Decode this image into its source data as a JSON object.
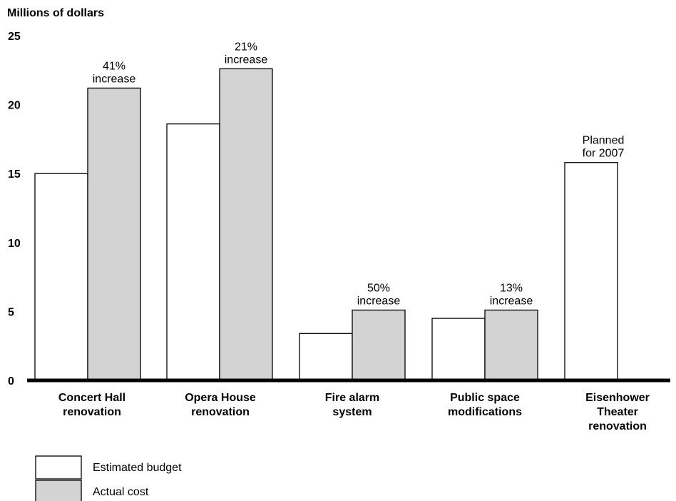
{
  "chart_data": {
    "type": "bar",
    "ylabel": "Millions of dollars",
    "ylim": [
      0,
      25
    ],
    "yticks": [
      "0",
      "5",
      "10",
      "15",
      "20",
      "25"
    ],
    "grid": false,
    "legend_position": "bottom-left",
    "categories": [
      [
        "Concert Hall",
        "renovation"
      ],
      [
        "Opera House",
        "renovation"
      ],
      [
        "Fire alarm",
        "system"
      ],
      [
        "Public space",
        "modifications"
      ],
      [
        "Eisenhower",
        "Theater",
        "renovation"
      ]
    ],
    "series": [
      {
        "name": "Estimated budget",
        "color": "#ffffff",
        "values": [
          15.0,
          18.6,
          3.4,
          4.5,
          15.8
        ]
      },
      {
        "name": "Actual cost",
        "color": "#d3d3d3",
        "values": [
          21.2,
          22.6,
          5.1,
          5.1,
          null
        ]
      }
    ],
    "annotations": [
      {
        "category_index": 0,
        "lines": [
          "41%",
          "increase"
        ]
      },
      {
        "category_index": 1,
        "lines": [
          "21%",
          "increase"
        ]
      },
      {
        "category_index": 2,
        "lines": [
          "50%",
          "increase"
        ]
      },
      {
        "category_index": 3,
        "lines": [
          "13%",
          "increase"
        ]
      },
      {
        "category_index": 4,
        "lines": [
          "Planned",
          "for 2007"
        ]
      }
    ]
  }
}
